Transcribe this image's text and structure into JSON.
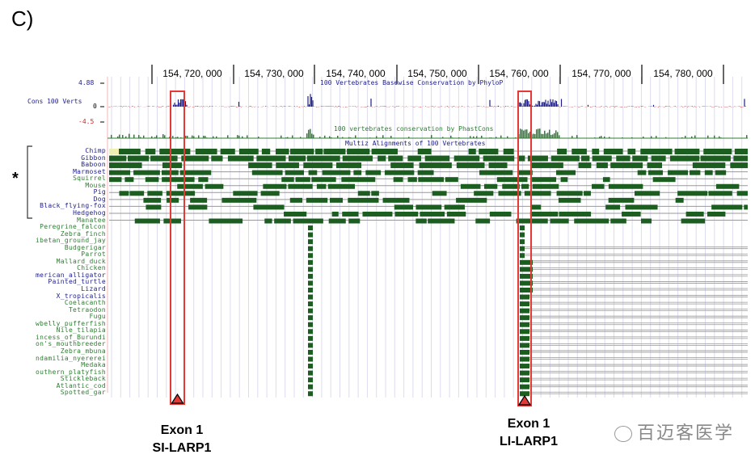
{
  "panel_label": "C)",
  "ruler": {
    "ticks": [
      "154, 720, 000",
      "154, 730, 000",
      "154, 740, 000",
      "154, 750, 000",
      "154, 760, 000",
      "154, 770, 000",
      "154, 780, 000"
    ]
  },
  "phylop": {
    "title": "100 Vertebrates Basewise Conservation by PhyloP",
    "track_label": "Cons 100 Verts",
    "max": "4.88",
    "zero": "0",
    "min": "-4.5"
  },
  "phastcons": {
    "title": "100 vertebrates conservation by PhastCons"
  },
  "multiz": {
    "title": "Multiz Alignments of 100 Vertebrates"
  },
  "species": [
    {
      "name": "Chimp",
      "color": "#1d1d8c"
    },
    {
      "name": "Gibbon",
      "color": "#1d1d8c"
    },
    {
      "name": "Baboon",
      "color": "#1d1d8c"
    },
    {
      "name": "Marmoset",
      "color": "#1d1d8c"
    },
    {
      "name": "Squirrel",
      "color": "#2e7d32"
    },
    {
      "name": "Mouse",
      "color": "#2e7d32"
    },
    {
      "name": "Pig",
      "color": "#1d1d8c"
    },
    {
      "name": "Dog",
      "color": "#1d1d8c"
    },
    {
      "name": "Black_flying-fox",
      "color": "#1d1d8c"
    },
    {
      "name": "Hedgehog",
      "color": "#1d1d8c"
    },
    {
      "name": "Manatee",
      "color": "#2e7d32"
    },
    {
      "name": "Peregrine_falcon",
      "color": "#2e7d32"
    },
    {
      "name": "Zebra_finch",
      "color": "#2e7d32"
    },
    {
      "name": "ibetan_ground_jay",
      "color": "#2e7d32"
    },
    {
      "name": "Budgerigar",
      "color": "#2e7d32"
    },
    {
      "name": "Parrot",
      "color": "#2e7d32"
    },
    {
      "name": "Mallard_duck",
      "color": "#2e7d32"
    },
    {
      "name": "Chicken",
      "color": "#2e7d32"
    },
    {
      "name": "merican_alligator",
      "color": "#1d1d8c"
    },
    {
      "name": "Painted_turtle",
      "color": "#1d1d8c"
    },
    {
      "name": "Lizard",
      "color": "#1d1d8c"
    },
    {
      "name": "X_tropicalis",
      "color": "#1d1d8c"
    },
    {
      "name": "Coelacanth",
      "color": "#2e7d32"
    },
    {
      "name": "Tetraodon",
      "color": "#2e7d32"
    },
    {
      "name": "Fugu",
      "color": "#2e7d32"
    },
    {
      "name": "wbelly_pufferfish",
      "color": "#2e7d32"
    },
    {
      "name": "Nile_tilapia",
      "color": "#2e7d32"
    },
    {
      "name": "incess_of_Burundi",
      "color": "#2e7d32"
    },
    {
      "name": "on's_mouthbreeder",
      "color": "#2e7d32"
    },
    {
      "name": "Zebra_mbuna",
      "color": "#2e7d32"
    },
    {
      "name": "ndamilia_nyererei",
      "color": "#2e7d32"
    },
    {
      "name": "Medaka",
      "color": "#2e7d32"
    },
    {
      "name": "outhern_platyfish",
      "color": "#2e7d32"
    },
    {
      "name": "Stickleback",
      "color": "#2e7d32"
    },
    {
      "name": "Atlantic_cod",
      "color": "#2e7d32"
    },
    {
      "name": "Spotted_gar",
      "color": "#2e7d32"
    }
  ],
  "bracket_mark": "*",
  "annotations": [
    {
      "line1": "Exon 1",
      "line2": "SI-LARP1"
    },
    {
      "line1": "Exon 1",
      "line2": "LI-LARP1"
    }
  ],
  "watermark": "百迈客医学",
  "colors": {
    "highlight_box": "#e53935",
    "alignment": "#1b5e20",
    "phylop_pos": "#1d1d8c",
    "phylop_neg": "#c62828",
    "phastcons": "#2e7d32",
    "gap_fill": "#f0f0b0"
  }
}
